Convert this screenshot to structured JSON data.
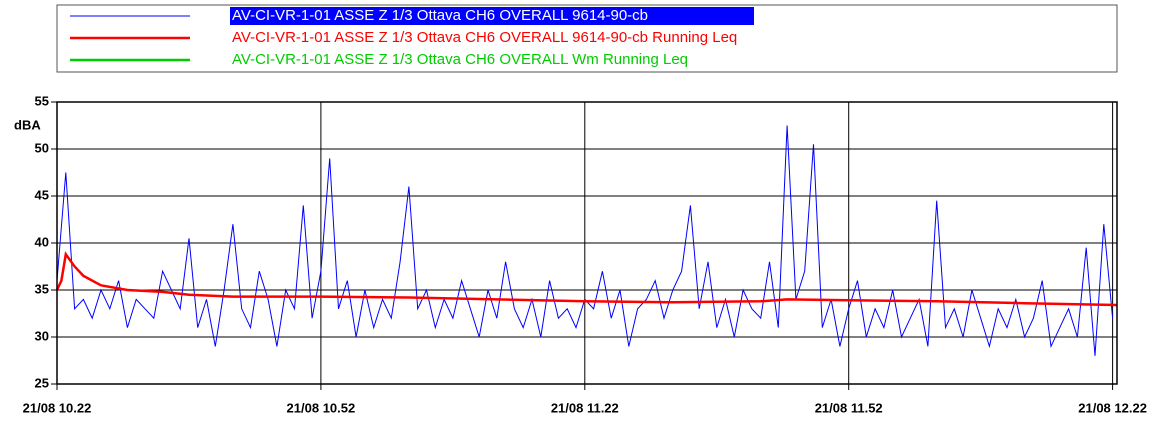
{
  "chart_data": {
    "type": "line",
    "y_label": "dBA",
    "xlim": [
      0,
      120.5
    ],
    "xticks": [
      {
        "value": 0,
        "label": "21/08 10.22"
      },
      {
        "value": 30,
        "label": "21/08 10.52"
      },
      {
        "value": 60,
        "label": "21/08 11.22"
      },
      {
        "value": 90,
        "label": "21/08 11.52"
      },
      {
        "value": 120,
        "label": "21/08 12.22"
      }
    ],
    "ylim": [
      25,
      55
    ],
    "yticks": [
      25,
      30,
      35,
      40,
      45,
      50,
      55
    ],
    "grid": true,
    "series": [
      {
        "name": "AV-CI-VR-1-01 ASSE Z 1/3 Ottava CH6 OVERALL 9614-90-cb",
        "color": "#0000ff",
        "highlighted": true,
        "x": [
          0,
          1,
          2,
          3,
          4,
          5,
          6,
          7,
          8,
          9,
          10,
          11,
          12,
          13,
          14,
          15,
          16,
          17,
          18,
          19,
          20,
          21,
          22,
          23,
          24,
          25,
          26,
          27,
          28,
          29,
          30,
          31,
          32,
          33,
          34,
          35,
          36,
          37,
          38,
          39,
          40,
          41,
          42,
          43,
          44,
          45,
          46,
          47,
          48,
          49,
          50,
          51,
          52,
          53,
          54,
          55,
          56,
          57,
          58,
          59,
          60,
          61,
          62,
          63,
          64,
          65,
          66,
          67,
          68,
          69,
          70,
          71,
          72,
          73,
          74,
          75,
          76,
          77,
          78,
          79,
          80,
          81,
          82,
          83,
          84,
          85,
          86,
          87,
          88,
          89,
          90,
          91,
          92,
          93,
          94,
          95,
          96,
          97,
          98,
          99,
          100,
          101,
          102,
          103,
          104,
          105,
          106,
          107,
          108,
          109,
          110,
          111,
          112,
          113,
          114,
          115,
          116,
          117,
          118,
          119,
          120
        ],
        "values": [
          36,
          47.5,
          33,
          34,
          32,
          35,
          33,
          36,
          31,
          34,
          33,
          32,
          37,
          35,
          33,
          40.5,
          31,
          34,
          29,
          35,
          42,
          33,
          31,
          37,
          34,
          29,
          35,
          33,
          44,
          32,
          37,
          49,
          33,
          36,
          30,
          35,
          31,
          34,
          32,
          38,
          46,
          33,
          35,
          31,
          34,
          32,
          36,
          33,
          30,
          35,
          32,
          38,
          33,
          31,
          34,
          30,
          36,
          32,
          33,
          31,
          34,
          33,
          37,
          32,
          35,
          29,
          33,
          34,
          36,
          32,
          35,
          37,
          44,
          33,
          38,
          31,
          34,
          30,
          35,
          33,
          32,
          38,
          31,
          52.5,
          34,
          37,
          50.5,
          31,
          34,
          29,
          33,
          36,
          30,
          33,
          31,
          35,
          30,
          32,
          34,
          29,
          44.5,
          31,
          33,
          30,
          35,
          32,
          29,
          33,
          31,
          34,
          30,
          32,
          36,
          29,
          31,
          33,
          30,
          39.5,
          28,
          42,
          32
        ]
      },
      {
        "name": "AV-CI-VR-1-01 ASSE Z 1/3 Ottava CH6 OVERALL 9614-90-cb Running Leq",
        "color": "#ff0000",
        "x": [
          0,
          0.5,
          1,
          2,
          3,
          5,
          8,
          12,
          15,
          20,
          30,
          40,
          50,
          60,
          70,
          80,
          83,
          90,
          100,
          110,
          120.5
        ],
        "values": [
          35,
          36,
          38.8,
          37.5,
          36.5,
          35.5,
          35,
          34.8,
          34.5,
          34.3,
          34.3,
          34.2,
          34,
          33.8,
          33.7,
          33.8,
          34,
          33.9,
          33.8,
          33.6,
          33.4
        ]
      },
      {
        "name": "AV-CI-VR-1-01 ASSE Z 1/3 Ottava CH6 OVERALL Wm Running Leq",
        "color": "#00cc00",
        "x": [],
        "values": []
      }
    ]
  }
}
